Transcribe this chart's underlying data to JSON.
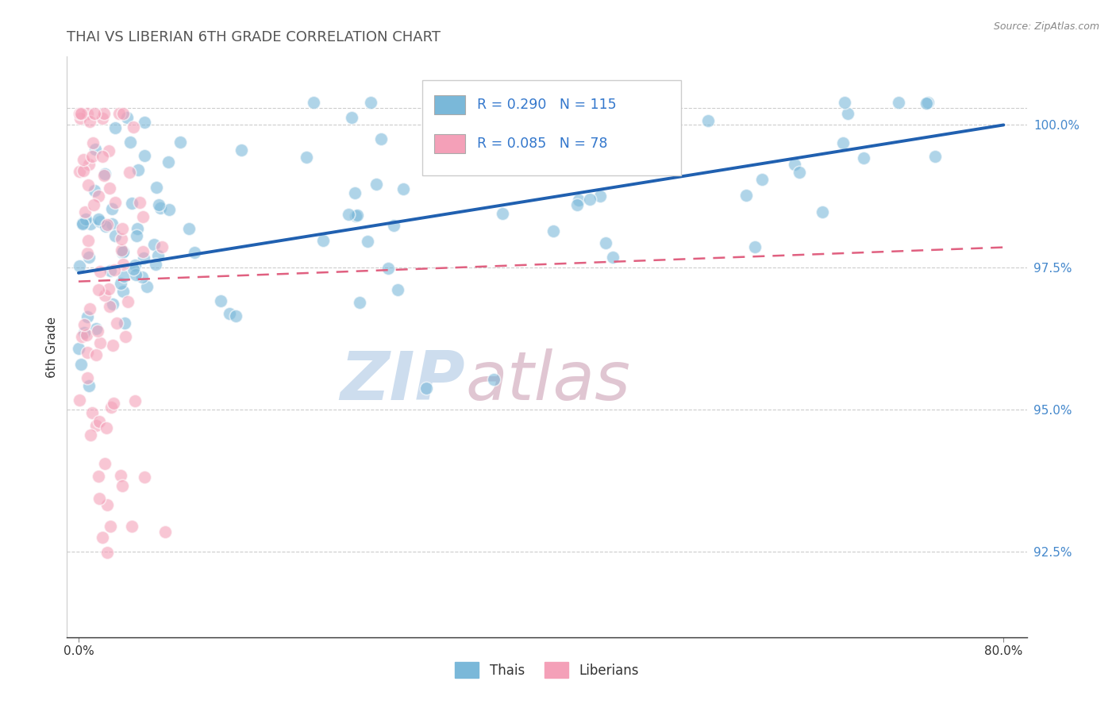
{
  "title": "THAI VS LIBERIAN 6TH GRADE CORRELATION CHART",
  "source_text": "Source: ZipAtlas.com",
  "ylabel": "6th Grade",
  "x_min": -1.0,
  "x_max": 82.0,
  "y_min": 91.0,
  "y_max": 101.2,
  "y_ticks": [
    92.5,
    95.0,
    97.5,
    100.0
  ],
  "x_ticks": [
    0.0,
    80.0
  ],
  "x_tick_labels": [
    "0.0%",
    "80.0%"
  ],
  "y_tick_labels": [
    "92.5%",
    "95.0%",
    "97.5%",
    "100.0%"
  ],
  "thai_color": "#7ab8d9",
  "liberian_color": "#f4a0b8",
  "thai_N": 115,
  "liberian_N": 78,
  "watermark_zip_color": "#b8cfe8",
  "watermark_atlas_color": "#d4afc0",
  "legend_label_thai": "Thais",
  "legend_label_liberian": "Liberians",
  "background_color": "#ffffff",
  "grid_color": "#cccccc",
  "thai_scatter_seed": 10,
  "liberian_scatter_seed": 20
}
